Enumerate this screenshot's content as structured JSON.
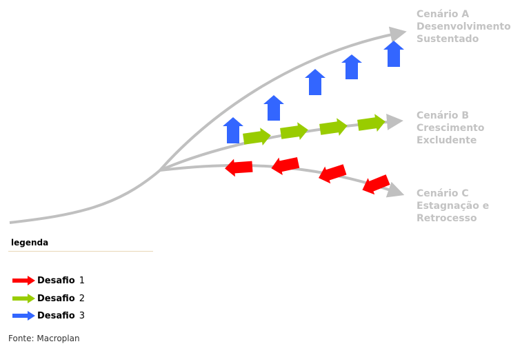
{
  "scenarios": [
    {
      "id": "a",
      "lines": [
        "Cenário A",
        "Desenvolvimento",
        "Sustentado"
      ]
    },
    {
      "id": "b",
      "lines": [
        "Cenário B",
        "Crescimento",
        "Excludente"
      ]
    },
    {
      "id": "c",
      "lines": [
        "Cenário C",
        "Estagnação e",
        "Retrocesso"
      ]
    }
  ],
  "legend": {
    "title": "legenda",
    "items": [
      {
        "label": "Desafio",
        "number": "1",
        "color": "#ff0000",
        "icon": "red-arrow-icon"
      },
      {
        "label": "Desafio",
        "number": "2",
        "color": "#99cc00",
        "icon": "green-arrow-icon"
      },
      {
        "label": "Desafio",
        "number": "3",
        "color": "#3366ff",
        "icon": "blue-arrow-icon"
      }
    ]
  },
  "colors": {
    "path": "#c0c0c0",
    "label": "#c3c3c3"
  },
  "source": "Fonte: Macroplan"
}
